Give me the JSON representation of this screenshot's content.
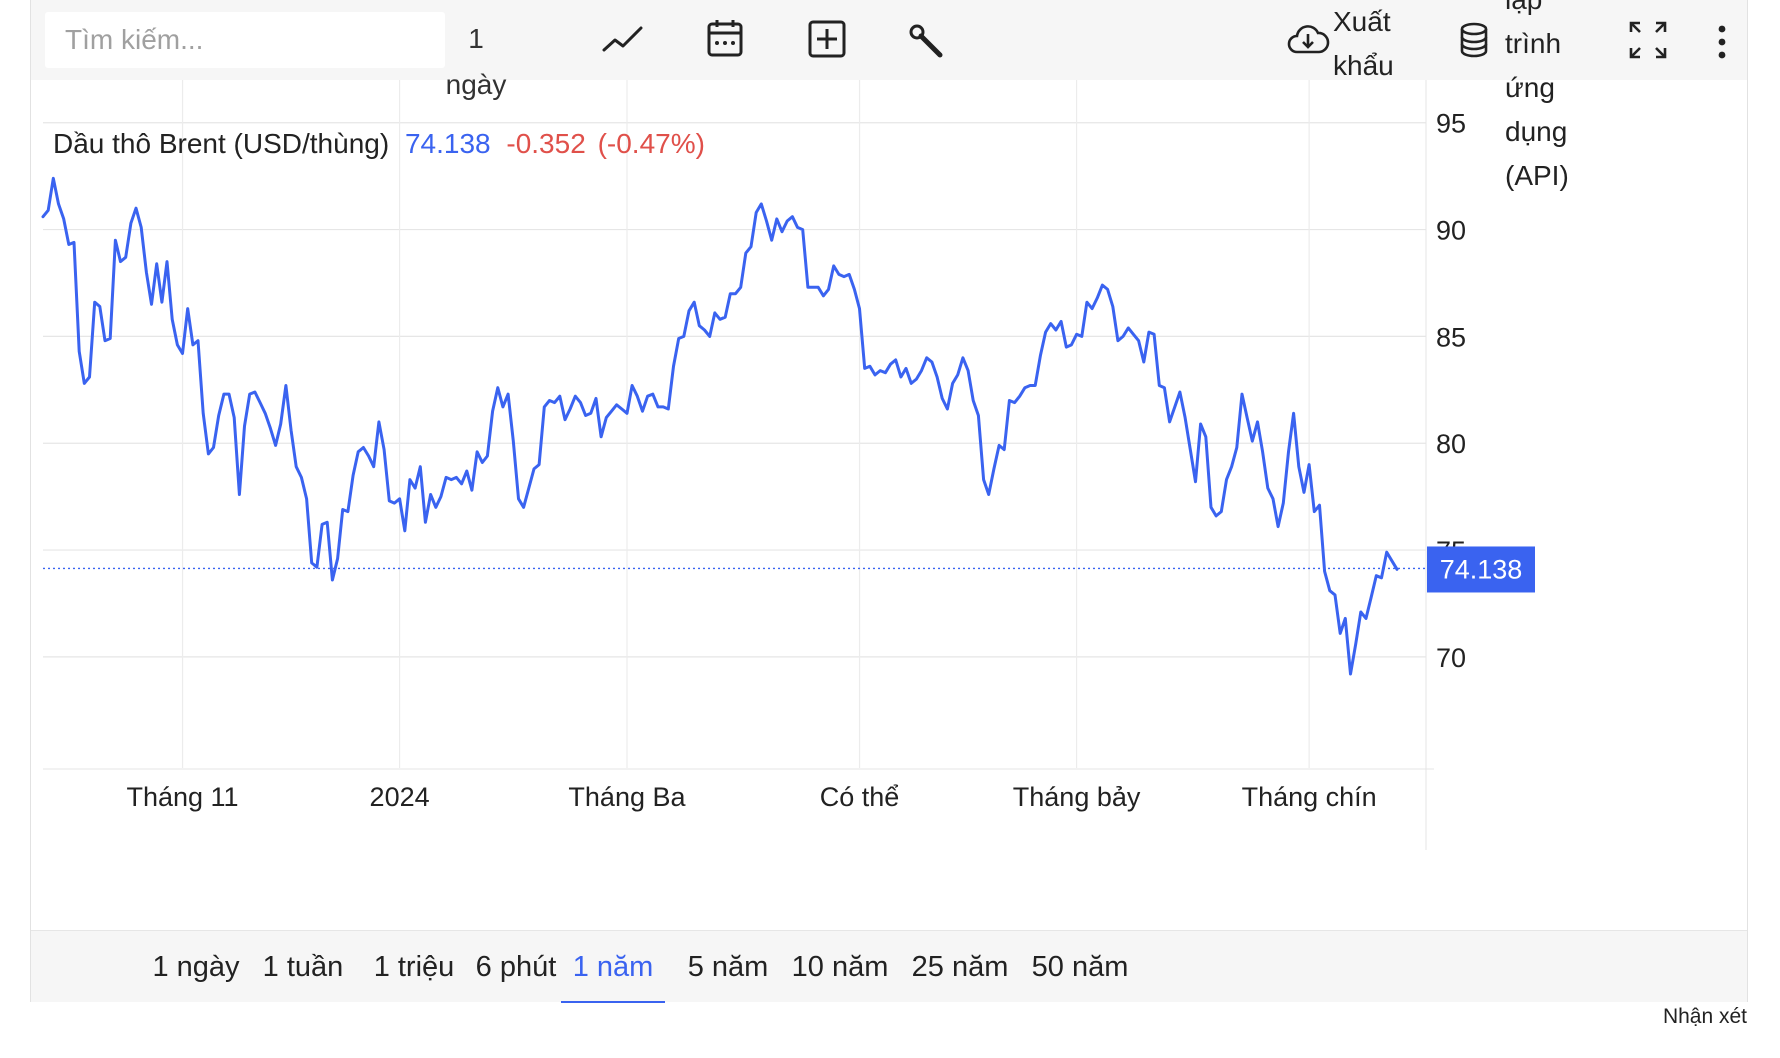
{
  "toolbar": {
    "search_placeholder": "Tìm kiếm...",
    "interval_label": "1\nngày",
    "export_label": "Xuất\nkhẩu",
    "api_label": "lập\ntrình\nứng\ndụng\n(API)",
    "icons": [
      "line-chart-icon",
      "calendar-icon",
      "add-icon",
      "wrench-icon",
      "cloud-download-icon",
      "database-icon",
      "fullscreen-icon",
      "more-icon",
      "gear-icon"
    ]
  },
  "header": {
    "label": "Dầu thô Brent (USD/thùng)",
    "last": "74.138",
    "change": "-0.352",
    "change_pct": "(-0.47%)"
  },
  "colors": {
    "line": "#3a63f0",
    "negative": "#e0504a",
    "badge": "#3a63f0"
  },
  "chart_data": {
    "type": "line",
    "title": "",
    "xlabel": "",
    "ylabel": "",
    "ylim": [
      64.8,
      97
    ],
    "yticks": [
      70,
      75,
      80,
      85,
      90,
      95
    ],
    "x_tick_labels": [
      {
        "label": "Tháng 11",
        "index": 27
      },
      {
        "label": "2024",
        "index": 69
      },
      {
        "label": "Tháng Ba",
        "index": 113
      },
      {
        "label": "Có thể",
        "index": 158
      },
      {
        "label": "Tháng bảy",
        "index": 200
      },
      {
        "label": "Tháng chín",
        "index": 245
      }
    ],
    "current_value": "74.138",
    "grid": true,
    "series": [
      {
        "values": [
          90.6,
          90.9,
          92.4,
          91.2,
          90.5,
          89.3,
          89.4,
          84.3,
          82.8,
          83.1,
          86.6,
          86.4,
          84.8,
          84.9,
          89.5,
          88.5,
          88.7,
          90.3,
          91.0,
          90.1,
          88.0,
          86.5,
          88.4,
          86.6,
          88.5,
          85.8,
          84.6,
          84.2,
          86.3,
          84.6,
          84.8,
          81.4,
          79.5,
          79.8,
          81.3,
          82.3,
          82.3,
          81.2,
          77.6,
          80.8,
          82.3,
          82.4,
          81.9,
          81.4,
          80.7,
          79.9,
          80.9,
          82.7,
          80.6,
          78.9,
          78.4,
          77.4,
          74.4,
          74.2,
          76.2,
          76.3,
          73.6,
          74.6,
          76.9,
          76.8,
          78.5,
          79.6,
          79.8,
          79.4,
          78.9,
          81.0,
          79.7,
          77.3,
          77.2,
          77.4,
          75.9,
          78.3,
          77.9,
          78.9,
          76.3,
          77.6,
          77.0,
          77.5,
          78.4,
          78.3,
          78.4,
          78.1,
          78.7,
          77.8,
          79.6,
          79.1,
          79.4,
          81.5,
          82.6,
          81.7,
          82.3,
          80.1,
          77.4,
          77.0,
          77.9,
          78.8,
          79.0,
          81.7,
          82.0,
          81.9,
          82.2,
          81.1,
          81.6,
          82.2,
          81.9,
          81.3,
          81.4,
          82.1,
          80.3,
          81.2,
          81.5,
          81.8,
          81.6,
          81.4,
          82.7,
          82.2,
          81.5,
          82.2,
          82.3,
          81.7,
          81.7,
          81.6,
          83.6,
          84.9,
          85.0,
          86.2,
          86.6,
          85.5,
          85.3,
          85.0,
          86.1,
          85.8,
          85.9,
          87.0,
          87.0,
          87.3,
          88.9,
          89.2,
          90.8,
          91.2,
          90.4,
          89.5,
          90.5,
          89.9,
          90.4,
          90.6,
          90.1,
          90.0,
          87.3,
          87.3,
          87.3,
          86.9,
          87.2,
          88.3,
          87.9,
          87.8,
          87.9,
          87.2,
          86.3,
          83.5,
          83.6,
          83.2,
          83.4,
          83.3,
          83.7,
          83.9,
          83.1,
          83.5,
          82.8,
          83.0,
          83.4,
          84.0,
          83.8,
          83.1,
          82.1,
          81.6,
          82.8,
          83.2,
          84.0,
          83.4,
          82.0,
          81.3,
          78.3,
          77.6,
          78.8,
          79.9,
          79.7,
          82.0,
          81.9,
          82.2,
          82.6,
          82.7,
          82.7,
          84.1,
          85.2,
          85.6,
          85.3,
          85.7,
          84.5,
          84.6,
          85.1,
          85.0,
          86.6,
          86.3,
          86.8,
          87.4,
          87.2,
          86.4,
          84.8,
          85.0,
          85.4,
          85.1,
          84.8,
          83.8,
          85.2,
          85.1,
          82.7,
          82.6,
          81.0,
          81.7,
          82.4,
          81.2,
          79.7,
          78.2,
          80.9,
          80.3,
          77.0,
          76.6,
          76.8,
          78.3,
          78.9,
          79.8,
          82.3,
          81.2,
          80.1,
          81.0,
          79.6,
          77.9,
          77.4,
          76.1,
          77.2,
          79.6,
          81.4,
          78.9,
          77.7,
          79.0,
          76.8,
          77.1,
          74.0,
          73.1,
          72.9,
          71.1,
          71.8,
          69.2,
          70.6,
          72.1,
          71.8,
          72.8,
          73.8,
          73.7,
          74.9,
          74.5,
          74.1
        ]
      }
    ]
  },
  "ranges": {
    "items": [
      "1 ngày",
      "1 tuần",
      "1 triệu",
      "6 phút",
      "1 năm",
      "5 năm",
      "10 năm",
      "25 năm",
      "50 năm"
    ],
    "active_index": 4
  },
  "footer": {
    "feedback": "Nhận xét"
  }
}
